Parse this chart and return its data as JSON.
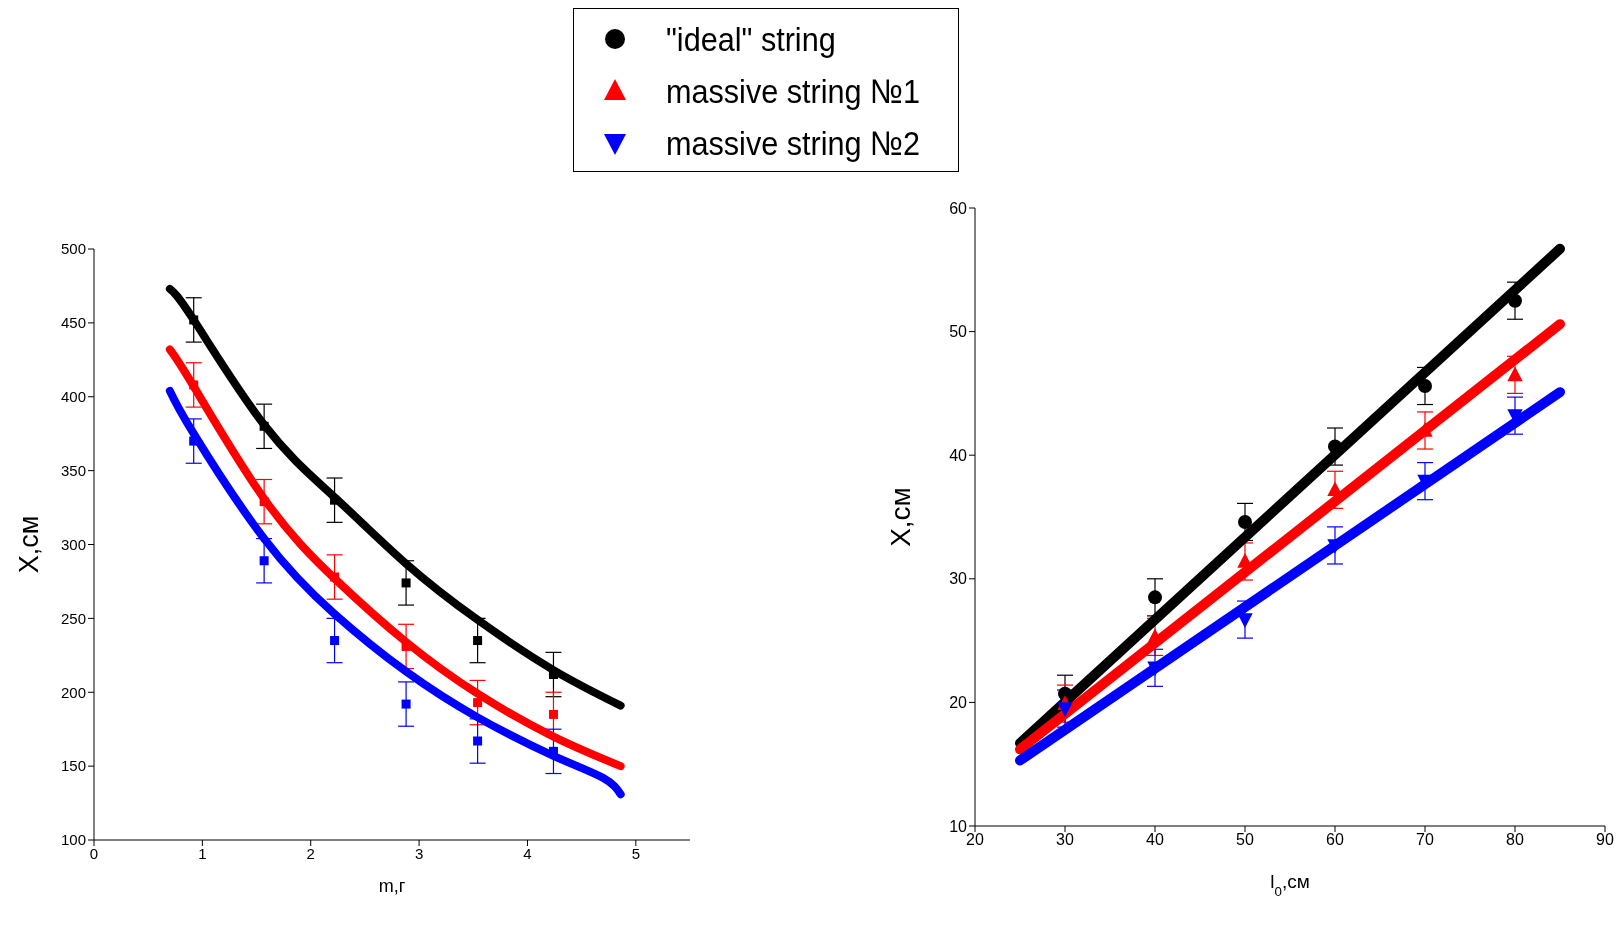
{
  "chart_data": [
    {
      "type": "scatter",
      "xlabel": "m,г",
      "ylabel": "X,см",
      "xlim": [
        0,
        5.5
      ],
      "xticks": [
        0,
        1,
        2,
        3,
        4,
        5
      ],
      "ylim": [
        100,
        500
      ],
      "yticks": [
        100,
        150,
        200,
        250,
        300,
        350,
        400,
        450,
        500
      ],
      "grid": false,
      "line_style": "solid",
      "series": [
        {
          "color": "#000000",
          "marker": "square",
          "x": [
            0.92,
            1.57,
            2.22,
            2.88,
            3.54,
            4.24
          ],
          "values": [
            452,
            380,
            330,
            274,
            235,
            212
          ],
          "errors": [
            15,
            15,
            15,
            15,
            15,
            15
          ]
        },
        {
          "color": "#ff0000",
          "marker": "square",
          "x": [
            0.92,
            1.57,
            2.22,
            2.88,
            3.54,
            4.24
          ],
          "values": [
            408,
            329,
            278,
            231,
            193,
            185
          ],
          "errors": [
            15,
            15,
            15,
            15,
            15,
            15
          ]
        },
        {
          "color": "#0000ff",
          "marker": "square",
          "x": [
            0.92,
            1.57,
            2.22,
            2.88,
            3.54,
            4.24
          ],
          "values": [
            370,
            289,
            235,
            192,
            167,
            160
          ],
          "errors": [
            15,
            15,
            15,
            15,
            15,
            15
          ]
        },
        {
          "type": "line",
          "color": "#000000",
          "marker": "none",
          "x": [
            0.7,
            0.92,
            1.57,
            2.22,
            2.88,
            3.54,
            4.24,
            4.86
          ],
          "values": [
            473,
            452,
            381,
            332,
            287,
            249,
            215,
            191
          ]
        },
        {
          "type": "line",
          "color": "#ff0000",
          "marker": "none",
          "x": [
            0.7,
            0.92,
            1.57,
            2.22,
            2.88,
            3.54,
            4.24,
            4.86
          ],
          "values": [
            432,
            407,
            331,
            277,
            234,
            199,
            170,
            150
          ]
        },
        {
          "type": "line",
          "color": "#0000ff",
          "marker": "none",
          "x": [
            0.7,
            0.92,
            1.57,
            2.22,
            2.88,
            3.54,
            4.24,
            4.7,
            4.86
          ],
          "values": [
            404,
            375,
            304,
            253,
            214,
            183,
            157,
            142,
            131
          ]
        }
      ]
    },
    {
      "type": "scatter",
      "xlabel": "l$_{0}$,см",
      "ylabel": "X,см",
      "xlim": [
        20,
        90
      ],
      "xticks": [
        20,
        30,
        40,
        50,
        60,
        70,
        80,
        90
      ],
      "ylim": [
        10,
        60
      ],
      "yticks": [
        10,
        20,
        30,
        40,
        50,
        60
      ],
      "grid": false,
      "legend": "top left",
      "line_style": "solid",
      "series": [
        {
          "name": "\"ideal\" string",
          "color": "#000000",
          "marker": "circle",
          "x": [
            30,
            40,
            50,
            60,
            70,
            80
          ],
          "values": [
            20.7,
            28.5,
            34.6,
            40.7,
            45.6,
            52.5
          ],
          "errors": [
            1.5,
            1.5,
            1.5,
            1.5,
            1.5,
            1.5
          ]
        },
        {
          "name": "massive string №1",
          "color": "#ff0000",
          "marker": "triangle",
          "x": [
            30,
            40,
            50,
            60,
            70,
            80
          ],
          "values": [
            19.9,
            25.3,
            31.4,
            37.2,
            42.0,
            46.5
          ],
          "errors": [
            1.5,
            1.5,
            1.5,
            1.5,
            1.5,
            1.5
          ]
        },
        {
          "name": "massive string №2",
          "color": "#0000ff",
          "marker": "triangle-down",
          "x": [
            30,
            40,
            50,
            60,
            70,
            80
          ],
          "values": [
            19.5,
            22.8,
            26.7,
            32.7,
            37.9,
            43.2
          ],
          "errors": [
            1.5,
            1.5,
            1.5,
            1.5,
            1.5,
            1.5
          ]
        },
        {
          "type": "line",
          "color": "#000000",
          "marker": "none",
          "x": [
            25,
            85
          ],
          "values": [
            16.7,
            56.7
          ]
        },
        {
          "type": "line",
          "color": "#ff0000",
          "marker": "none",
          "x": [
            25,
            85
          ],
          "values": [
            16.2,
            50.6
          ]
        },
        {
          "type": "line",
          "color": "#0000ff",
          "marker": "none",
          "x": [
            25,
            85
          ],
          "values": [
            15.3,
            45.1
          ]
        }
      ]
    }
  ]
}
